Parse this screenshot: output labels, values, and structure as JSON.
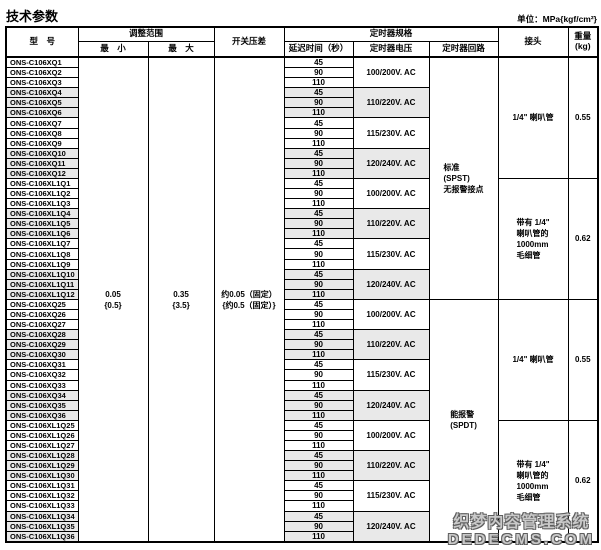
{
  "page": {
    "title": "技术参数",
    "unit_note": "单位：MPa{kgf/cm²}"
  },
  "table": {
    "headers": {
      "model": "型　号",
      "adjust_range": "调整范围",
      "min": "最　小",
      "max": "最　大",
      "switch_diff": "开关压差",
      "timer_spec": "定时器规格",
      "delay_time": "延迟时间（秒）",
      "timer_voltage": "定时器电压",
      "timer_circuit": "定时器回路",
      "connector": "接头",
      "weight": "重量",
      "weight_unit": "(kg)"
    },
    "range": {
      "min_lines": [
        "0.05",
        "{0.5}"
      ],
      "max_lines": [
        "0.35",
        "{3.5}"
      ],
      "switch_diff_lines": [
        "约0.05（固定）",
        "{约0.5（固定）}"
      ]
    },
    "delay_cycle": [
      "45",
      "90",
      "110"
    ],
    "voltage_cycle": [
      "100/200V. AC",
      "110/220V. AC",
      "115/230V. AC",
      "120/240V. AC"
    ],
    "models": [
      "ONS-C106XQ1",
      "ONS-C106XQ2",
      "ONS-C106XQ3",
      "ONS-C106XQ4",
      "ONS-C106XQ5",
      "ONS-C106XQ6",
      "ONS-C106XQ7",
      "ONS-C106XQ8",
      "ONS-C106XQ9",
      "ONS-C106XQ10",
      "ONS-C106XQ11",
      "ONS-C106XQ12",
      "ONS-C106XL1Q1",
      "ONS-C106XL1Q2",
      "ONS-C106XL1Q3",
      "ONS-C106XL1Q4",
      "ONS-C106XL1Q5",
      "ONS-C106XL1Q6",
      "ONS-C106XL1Q7",
      "ONS-C106XL1Q8",
      "ONS-C106XL1Q9",
      "ONS-C106XL1Q10",
      "ONS-C106XL1Q11",
      "ONS-C106XL1Q12",
      "ONS-C106XQ25",
      "ONS-C106XQ26",
      "ONS-C106XQ27",
      "ONS-C106XQ28",
      "ONS-C106XQ29",
      "ONS-C106XQ30",
      "ONS-C106XQ31",
      "ONS-C106XQ32",
      "ONS-C106XQ33",
      "ONS-C106XQ34",
      "ONS-C106XQ35",
      "ONS-C106XQ36",
      "ONS-C106XL1Q25",
      "ONS-C106XL1Q26",
      "ONS-C106XL1Q27",
      "ONS-C106XL1Q28",
      "ONS-C106XL1Q29",
      "ONS-C106XL1Q30",
      "ONS-C106XL1Q31",
      "ONS-C106XL1Q32",
      "ONS-C106XL1Q33",
      "ONS-C106XL1Q34",
      "ONS-C106XL1Q35",
      "ONS-C106XL1Q36"
    ],
    "circuits": [
      {
        "lines": [
          "标准",
          "(SPST)",
          "无报警接点"
        ]
      },
      {
        "lines": [
          "能报警",
          "(SPDT)"
        ]
      }
    ],
    "connector_blocks": [
      {
        "lines": [
          "1/4\" 喇叭管"
        ],
        "weight": "0.55"
      },
      {
        "lines": [
          "带有 1/4\"",
          "喇叭管的",
          "1000mm",
          "毛细管"
        ],
        "weight": "0.62"
      },
      {
        "lines": [
          "1/4\" 喇叭管"
        ],
        "weight": "0.55"
      },
      {
        "lines": [
          "带有 1/4\"",
          "喇叭管的",
          "1000mm",
          "毛细管"
        ],
        "weight": "0.62"
      }
    ],
    "colors": {
      "shaded_row": "#e9e9e9",
      "border": "#000000",
      "watermark_fill": "#c9c9c9",
      "watermark_outline": "#5f5f5f"
    }
  },
  "watermark": {
    "line1": "织梦内容管理系统",
    "line2": "DEDECMS.COM"
  }
}
